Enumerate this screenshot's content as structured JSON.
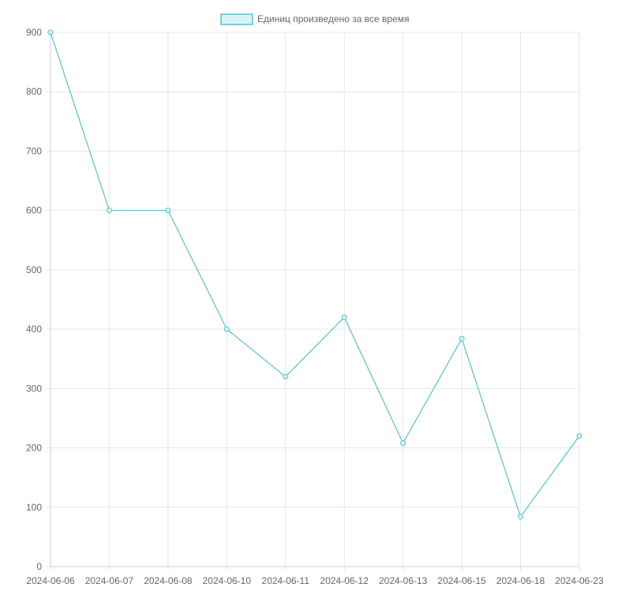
{
  "colors": {
    "series_line": "#5bc0c9",
    "series_fill": "#d9f2f4",
    "grid": "#e6e6e6",
    "axis": "#cccccc",
    "tick_text": "#666666"
  },
  "chart_data": {
    "type": "line",
    "categories": [
      "2024-06-06",
      "2024-06-07",
      "2024-06-08",
      "2024-06-10",
      "2024-06-11",
      "2024-06-12",
      "2024-06-13",
      "2024-06-15",
      "2024-06-18",
      "2024-06-23"
    ],
    "series": [
      {
        "name": "Единиц произведено за все время",
        "values": [
          900,
          600,
          600,
          400,
          320,
          420,
          208,
          384,
          84,
          220
        ]
      }
    ],
    "y_ticks": [
      0,
      100,
      200,
      300,
      400,
      500,
      600,
      700,
      800,
      900
    ],
    "ylim": [
      0,
      900
    ],
    "grid": true,
    "legend": "top-center",
    "title": "",
    "xlabel": "",
    "ylabel": ""
  }
}
